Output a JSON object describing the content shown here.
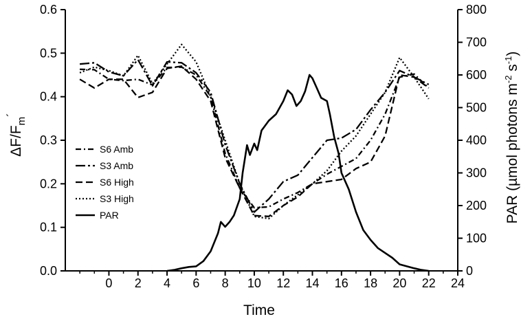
{
  "chart_data": {
    "type": "line",
    "xlabel": "Time",
    "ylabel_left": "ΔF/F",
    "ylabel_left_sub": "m",
    "ylabel_left_sup": "´",
    "ylabel_right": {
      "p1": "PAR (µmol photons m",
      "sup1": "-2",
      "p2": " s",
      "sup2": "-1",
      "p3": ")"
    },
    "xlim": [
      -3,
      24
    ],
    "ylim_left": [
      0,
      0.6
    ],
    "ylim_right": [
      0,
      800
    ],
    "x_ticks": [
      0,
      2,
      4,
      6,
      8,
      10,
      12,
      14,
      16,
      18,
      20,
      22,
      24
    ],
    "y_left_ticks": [
      "0.0",
      "0.1",
      "0.2",
      "0.3",
      "0.4",
      "0.5",
      "0.6"
    ],
    "y_right_ticks": [
      "0",
      "100",
      "200",
      "300",
      "400",
      "500",
      "600",
      "700",
      "800"
    ],
    "legend_position": "left-center",
    "series": [
      {
        "name": "S6 Amb",
        "axis": "left",
        "dash": "dash-dot",
        "points": [
          [
            -2,
            0.463
          ],
          [
            -1,
            0.462
          ],
          [
            0,
            0.44
          ],
          [
            1,
            0.437
          ],
          [
            2,
            0.44
          ],
          [
            3,
            0.427
          ],
          [
            4,
            0.467
          ],
          [
            5,
            0.468
          ],
          [
            6,
            0.45
          ],
          [
            7,
            0.4
          ],
          [
            8,
            0.27
          ],
          [
            9,
            0.19
          ],
          [
            10,
            0.145
          ],
          [
            11,
            0.147
          ],
          [
            12,
            0.165
          ],
          [
            13,
            0.18
          ],
          [
            14,
            0.2
          ],
          [
            15,
            0.222
          ],
          [
            16,
            0.24
          ],
          [
            17,
            0.258
          ],
          [
            18,
            0.3
          ],
          [
            19,
            0.36
          ],
          [
            20,
            0.445
          ],
          [
            21,
            0.452
          ],
          [
            22,
            0.42
          ]
        ]
      },
      {
        "name": "S3 Amb",
        "axis": "left",
        "dash": "long-dash-dot",
        "points": [
          [
            -2,
            0.475
          ],
          [
            -1,
            0.478
          ],
          [
            0,
            0.457
          ],
          [
            1,
            0.448
          ],
          [
            2,
            0.485
          ],
          [
            3,
            0.425
          ],
          [
            4,
            0.48
          ],
          [
            5,
            0.478
          ],
          [
            6,
            0.455
          ],
          [
            7,
            0.41
          ],
          [
            8,
            0.29
          ],
          [
            9,
            0.2
          ],
          [
            10,
            0.135
          ],
          [
            11,
            0.165
          ],
          [
            12,
            0.205
          ],
          [
            13,
            0.22
          ],
          [
            14,
            0.26
          ],
          [
            15,
            0.3
          ],
          [
            16,
            0.305
          ],
          [
            17,
            0.325
          ],
          [
            18,
            0.37
          ],
          [
            19,
            0.41
          ],
          [
            20,
            0.46
          ],
          [
            21,
            0.445
          ],
          [
            22,
            0.428
          ]
        ]
      },
      {
        "name": "S6 High",
        "axis": "left",
        "dash": "dashed",
        "points": [
          [
            -2,
            0.44
          ],
          [
            -1,
            0.42
          ],
          [
            0,
            0.44
          ],
          [
            1,
            0.44
          ],
          [
            2,
            0.398
          ],
          [
            3,
            0.41
          ],
          [
            4,
            0.465
          ],
          [
            5,
            0.47
          ],
          [
            6,
            0.44
          ],
          [
            7,
            0.39
          ],
          [
            8,
            0.26
          ],
          [
            9,
            0.19
          ],
          [
            10,
            0.127
          ],
          [
            11,
            0.125
          ],
          [
            12,
            0.15
          ],
          [
            13,
            0.17
          ],
          [
            14,
            0.2
          ],
          [
            15,
            0.205
          ],
          [
            16,
            0.21
          ],
          [
            17,
            0.235
          ],
          [
            18,
            0.25
          ],
          [
            19,
            0.31
          ],
          [
            20,
            0.45
          ],
          [
            21,
            0.445
          ],
          [
            22,
            0.42
          ]
        ]
      },
      {
        "name": "S3 High",
        "axis": "left",
        "dash": "dotted",
        "points": [
          [
            -2,
            0.455
          ],
          [
            -1,
            0.468
          ],
          [
            0,
            0.46
          ],
          [
            1,
            0.448
          ],
          [
            2,
            0.495
          ],
          [
            3,
            0.43
          ],
          [
            4,
            0.475
          ],
          [
            5,
            0.52
          ],
          [
            6,
            0.48
          ],
          [
            7,
            0.4
          ],
          [
            8,
            0.3
          ],
          [
            9,
            0.2
          ],
          [
            10,
            0.125
          ],
          [
            11,
            0.12
          ],
          [
            12,
            0.15
          ],
          [
            13,
            0.175
          ],
          [
            14,
            0.2
          ],
          [
            15,
            0.23
          ],
          [
            16,
            0.275
          ],
          [
            17,
            0.31
          ],
          [
            18,
            0.36
          ],
          [
            19,
            0.41
          ],
          [
            20,
            0.49
          ],
          [
            21,
            0.445
          ],
          [
            22,
            0.395
          ]
        ]
      },
      {
        "name": "PAR",
        "axis": "right",
        "dash": "solid",
        "points": [
          [
            4,
            0
          ],
          [
            4.5,
            3
          ],
          [
            5,
            8
          ],
          [
            5.5,
            12
          ],
          [
            6,
            14
          ],
          [
            6.5,
            30
          ],
          [
            7,
            60
          ],
          [
            7.5,
            115
          ],
          [
            7.7,
            150
          ],
          [
            8,
            135
          ],
          [
            8.3,
            150
          ],
          [
            8.6,
            170
          ],
          [
            9,
            220
          ],
          [
            9.2,
            300
          ],
          [
            9.5,
            385
          ],
          [
            9.7,
            355
          ],
          [
            10,
            390
          ],
          [
            10.2,
            370
          ],
          [
            10.5,
            430
          ],
          [
            11,
            460
          ],
          [
            11.5,
            480
          ],
          [
            12,
            520
          ],
          [
            12.3,
            553
          ],
          [
            12.6,
            540
          ],
          [
            12.9,
            505
          ],
          [
            13.2,
            520
          ],
          [
            13.5,
            550
          ],
          [
            13.8,
            600
          ],
          [
            14,
            590
          ],
          [
            14.3,
            560
          ],
          [
            14.6,
            530
          ],
          [
            15,
            520
          ],
          [
            15.2,
            480
          ],
          [
            15.5,
            410
          ],
          [
            15.8,
            360
          ],
          [
            16,
            300
          ],
          [
            16.5,
            250
          ],
          [
            17,
            180
          ],
          [
            17.5,
            125
          ],
          [
            18,
            95
          ],
          [
            18.5,
            70
          ],
          [
            19,
            55
          ],
          [
            19.5,
            40
          ],
          [
            20,
            20
          ],
          [
            20.5,
            14
          ],
          [
            21,
            8
          ],
          [
            21.5,
            3
          ],
          [
            22,
            0
          ]
        ]
      }
    ]
  }
}
